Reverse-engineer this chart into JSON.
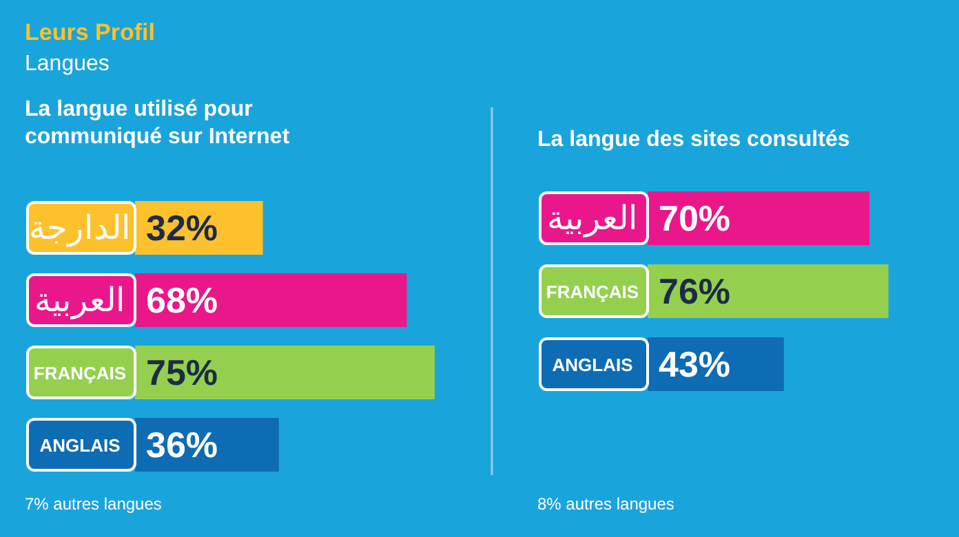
{
  "chart_data": [
    {
      "type": "other",
      "title": "Leurs Profil",
      "subtitle": "Langues"
    },
    {
      "type": "bar",
      "orientation": "horizontal",
      "title": "La langue utilisé pour communiqué sur Internet",
      "categories": [
        "الدارجة",
        "العربية",
        "FRANÇAIS",
        "ANGLAIS"
      ],
      "values": [
        32,
        68,
        75,
        36
      ],
      "colors": [
        "#fcc12c",
        "#e9178a",
        "#94d04e",
        "#0e6cb5"
      ],
      "value_labels": [
        "32%",
        "68%",
        "75%",
        "36%"
      ],
      "annotations": [
        "7% autres langues"
      ]
    },
    {
      "type": "bar",
      "orientation": "horizontal",
      "title": "La langue des sites consultés",
      "categories": [
        "العربية",
        "FRANÇAIS",
        "ANGLAIS"
      ],
      "values": [
        70,
        76,
        43
      ],
      "colors": [
        "#e9178a",
        "#94d04e",
        "#0e6cb5"
      ],
      "value_labels": [
        "70%",
        "76%",
        "43%"
      ],
      "annotations": [
        "8% autres langues"
      ]
    }
  ]
}
